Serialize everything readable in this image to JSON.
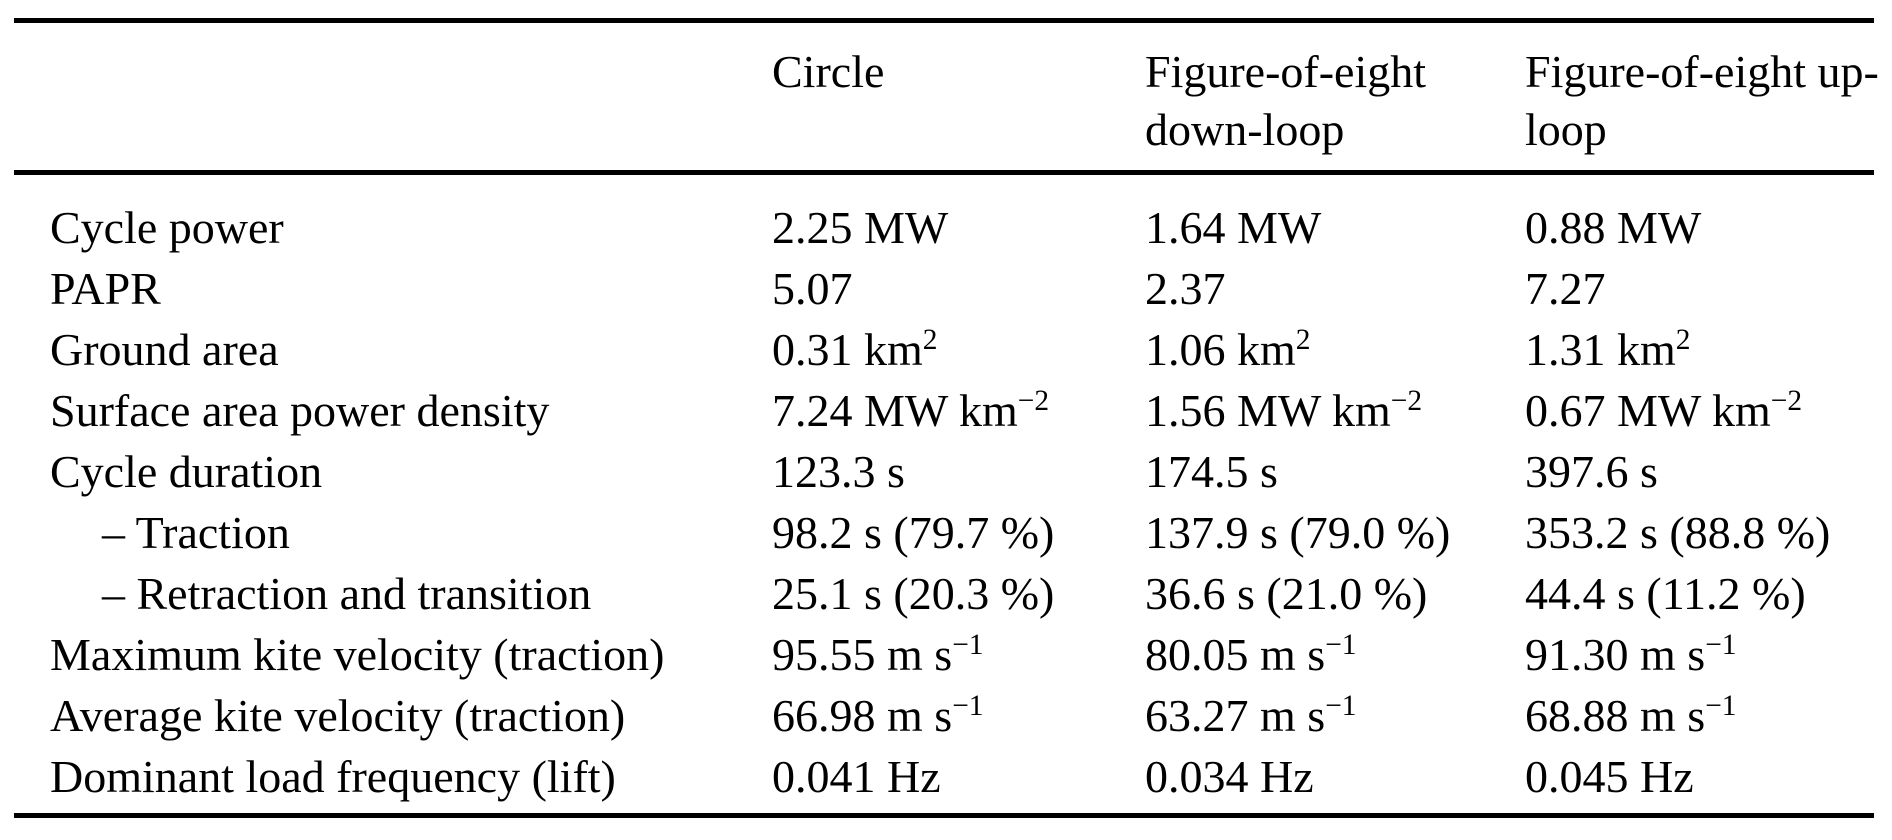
{
  "colors": {
    "background": "#ffffff",
    "text": "#000000",
    "rule": "#000000"
  },
  "table": {
    "column_headers": [
      "",
      "Circle",
      "Figure-of-eight down-loop",
      "Figure-of-eight up-loop"
    ],
    "rows": [
      {
        "label": "Cycle power",
        "indent": false,
        "values": [
          "2.25 MW",
          "1.64 MW",
          "0.88 MW"
        ]
      },
      {
        "label": "PAPR",
        "indent": false,
        "values": [
          "5.07",
          "2.37",
          "7.27"
        ]
      },
      {
        "label": "Ground area",
        "indent": false,
        "values": [
          "0.31 km²",
          "1.06 km²",
          "1.31 km²"
        ]
      },
      {
        "label": "Surface area power density",
        "indent": false,
        "values": [
          "7.24 MW km⁻²",
          "1.56 MW km⁻²",
          "0.67 MW km⁻²"
        ]
      },
      {
        "label": "Cycle duration",
        "indent": false,
        "values": [
          "123.3 s",
          "174.5 s",
          "397.6 s"
        ]
      },
      {
        "label": "– Traction",
        "indent": true,
        "values": [
          "98.2 s (79.7 %)",
          "137.9 s (79.0 %)",
          "353.2 s (88.8 %)"
        ]
      },
      {
        "label": "– Retraction and transition",
        "indent": true,
        "values": [
          "25.1 s (20.3 %)",
          "36.6 s (21.0 %)",
          "44.4 s (11.2 %)"
        ]
      },
      {
        "label": "Maximum kite velocity (traction)",
        "indent": false,
        "values": [
          "95.55 m s⁻¹",
          "80.05 m s⁻¹",
          "91.30 m s⁻¹"
        ]
      },
      {
        "label": "Average kite velocity (traction)",
        "indent": false,
        "values": [
          "66.98 m s⁻¹",
          "63.27 m s⁻¹",
          "68.88 m s⁻¹"
        ]
      },
      {
        "label": "Dominant load frequency (lift)",
        "indent": false,
        "values": [
          "0.041 Hz",
          "0.034 Hz",
          "0.045 Hz"
        ]
      }
    ]
  }
}
